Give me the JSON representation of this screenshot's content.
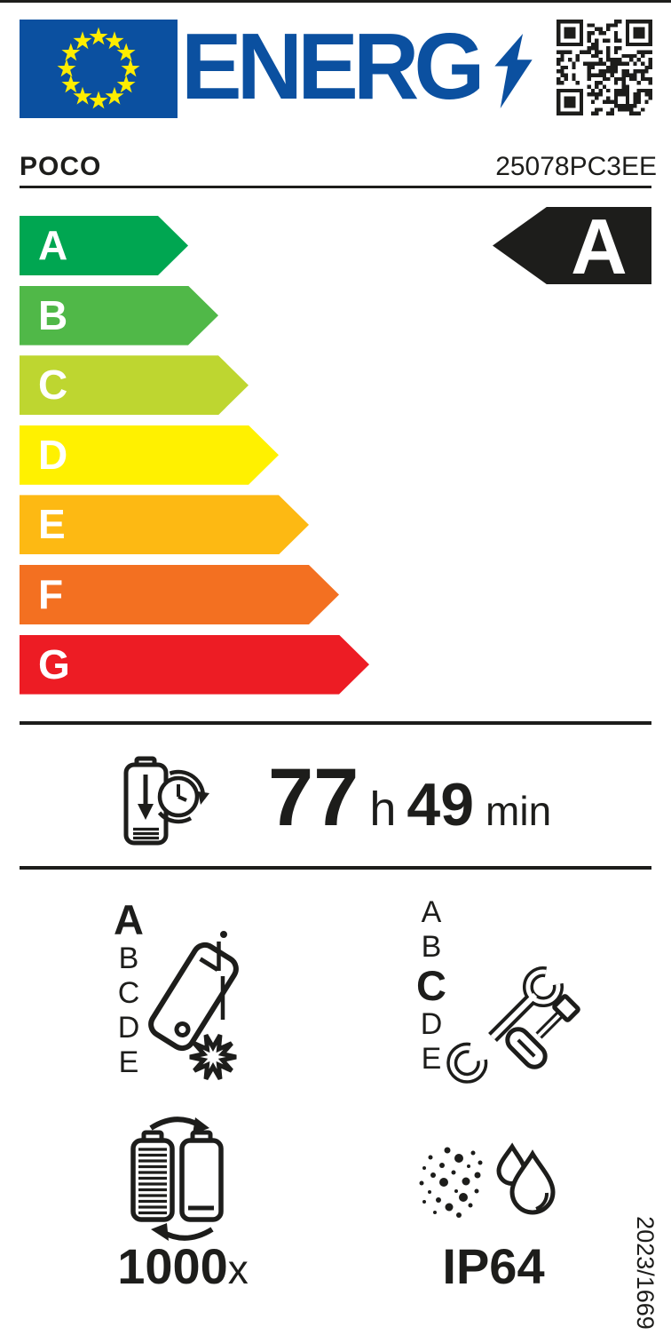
{
  "header": {
    "logo_text": "ENERG",
    "brand": "POCO",
    "model": "25078PC3EE"
  },
  "colors": {
    "eu_blue": "#0b50a0",
    "star_yellow": "#ffed00",
    "ink": "#1d1d1b",
    "white": "#ffffff"
  },
  "energy_scale": {
    "rating": "A",
    "classes": [
      {
        "letter": "A",
        "color": "#00a651"
      },
      {
        "letter": "B",
        "color": "#50b848"
      },
      {
        "letter": "C",
        "color": "#bed630"
      },
      {
        "letter": "D",
        "color": "#fff100"
      },
      {
        "letter": "E",
        "color": "#fdb913"
      },
      {
        "letter": "F",
        "color": "#f37021"
      },
      {
        "letter": "G",
        "color": "#ed1c24"
      }
    ]
  },
  "battery_endurance": {
    "hours": "77",
    "hours_unit": "h",
    "minutes": "49",
    "minutes_unit": "min"
  },
  "free_fall": {
    "scale": [
      "A",
      "B",
      "C",
      "D",
      "E"
    ],
    "rating": "A"
  },
  "repairability": {
    "scale": [
      "A",
      "B",
      "C",
      "D",
      "E"
    ],
    "rating": "C"
  },
  "battery_cycles": {
    "value": "1000",
    "unit": "x"
  },
  "ingress_protection": {
    "value": "IP64"
  },
  "regulation": "2023/1669",
  "icons": {
    "eu_flag": "eu-flag",
    "energy_lightning": "lightning-bolt-icon",
    "qr": "qr-code",
    "battery_clock": "battery-discharge-clock-icon",
    "falling_phone": "falling-phone-icon",
    "repair_tools": "wrench-screwdriver-icon",
    "battery_cycles": "battery-recharge-cycles-icon",
    "dust_water": "dust-and-water-drops-icon"
  }
}
